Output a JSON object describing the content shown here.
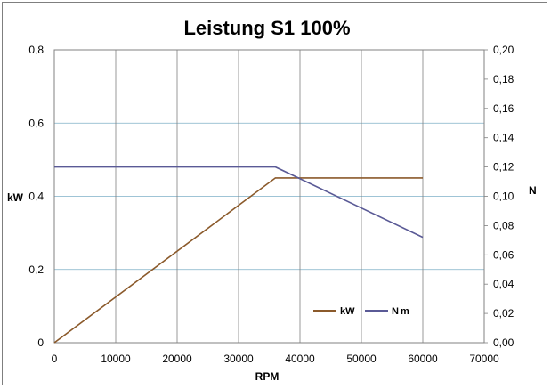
{
  "chart_data": {
    "type": "line",
    "title": "Leistung S1 100%",
    "xlabel": "RPM",
    "ylabel_left": "kW",
    "ylabel_right": "N",
    "xlim": [
      0,
      70000
    ],
    "ylim_left": [
      0,
      0.8
    ],
    "ylim_right": [
      0,
      0.2
    ],
    "x_ticks": [
      "0",
      "10000",
      "20000",
      "30000",
      "40000",
      "50000",
      "60000",
      "70000"
    ],
    "y_left_ticks": [
      "0",
      "0,2",
      "0,4",
      "0,6",
      "0,8"
    ],
    "y_right_ticks": [
      "0,00",
      "0,02",
      "0,04",
      "0,06",
      "0,08",
      "0,10",
      "0,12",
      "0,14",
      "0,16",
      "0,18",
      "0,20"
    ],
    "grid": true,
    "legend_position": "bottom-right",
    "series": [
      {
        "name": "kW",
        "axis": "left",
        "color": "#8b5a2b",
        "x": [
          0,
          36000,
          60000
        ],
        "y": [
          0,
          0.45,
          0.45
        ]
      },
      {
        "name": "Nm",
        "axis": "right",
        "color": "#5a5a96",
        "x": [
          0,
          36000,
          60000
        ],
        "y": [
          0.12,
          0.12,
          0.072
        ]
      }
    ]
  }
}
